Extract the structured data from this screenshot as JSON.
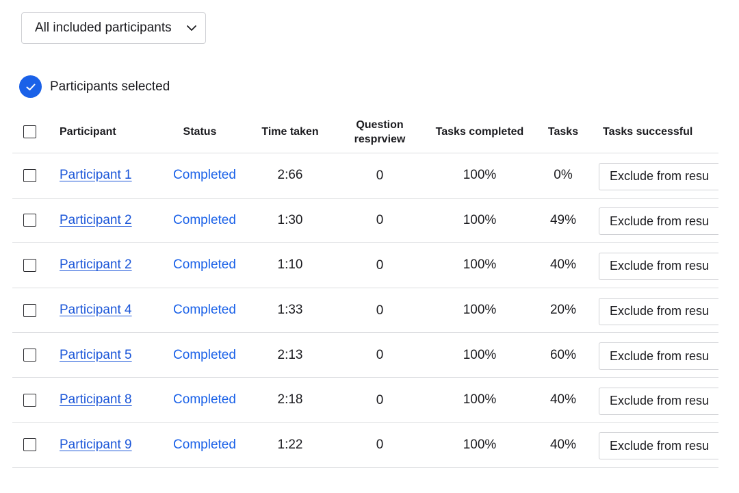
{
  "filter": {
    "selected": "All included participants"
  },
  "selection": {
    "label": "Participants selected"
  },
  "table": {
    "headers": {
      "participant": "Participant",
      "status": "Status",
      "time_taken": "Time taken",
      "question_line1": "Question",
      "question_line2": "resprview",
      "tasks_completed": "Tasks completed",
      "tasks": "Tasks",
      "tasks_successful": "Tasks successful"
    },
    "rows": [
      {
        "participant": "Participant 1",
        "status": "Completed",
        "time_taken": "2:66",
        "question": "0",
        "tasks_completed": "100%",
        "tasks": "0%",
        "action": "Exclude from resu"
      },
      {
        "participant": "Participant 2",
        "status": "Completed",
        "time_taken": "1:30",
        "question": "0",
        "tasks_completed": "100%",
        "tasks": "49%",
        "action": "Exclude from resu"
      },
      {
        "participant": "Participant 2",
        "status": "Completed",
        "time_taken": "1:10",
        "question": "0",
        "tasks_completed": "100%",
        "tasks": "40%",
        "action": "Exclude from resu"
      },
      {
        "participant": "Participant 4",
        "status": "Completed",
        "time_taken": "1:33",
        "question": "0",
        "tasks_completed": "100%",
        "tasks": "20%",
        "action": "Exclude from resu"
      },
      {
        "participant": "Participant 5",
        "status": "Completed",
        "time_taken": "2:13",
        "question": "0",
        "tasks_completed": "100%",
        "tasks": "60%",
        "action": "Exclude from resu"
      },
      {
        "participant": "Participant 8",
        "status": "Completed",
        "time_taken": "2:18",
        "question": "0",
        "tasks_completed": "100%",
        "tasks": "40%",
        "action": "Exclude from resu"
      },
      {
        "participant": "Participant 9",
        "status": "Completed",
        "time_taken": "1:22",
        "question": "0",
        "tasks_completed": "100%",
        "tasks": "40%",
        "action": "Exclude from resu"
      }
    ]
  },
  "colors": {
    "accent": "#1a61e8",
    "link": "#1a55d8",
    "border": "#dcdde0"
  }
}
